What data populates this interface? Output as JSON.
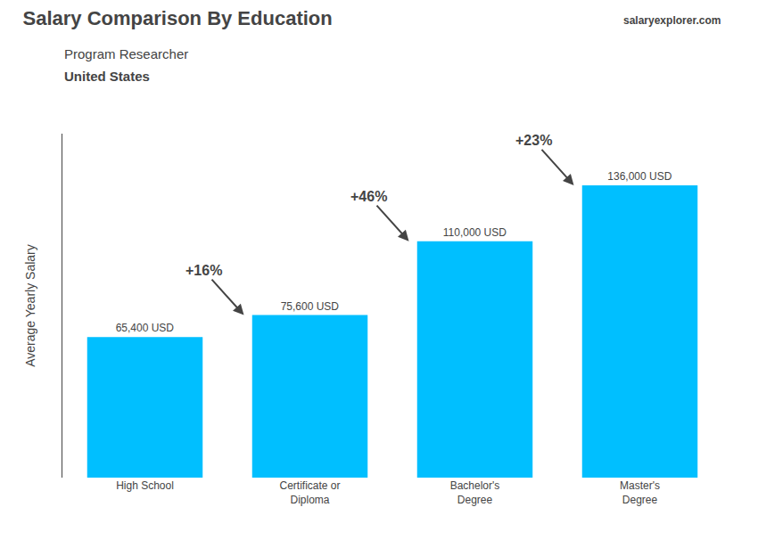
{
  "chart_data": {
    "type": "bar",
    "title": "Salary Comparison By Education",
    "subtitle": "Program Researcher",
    "country": "United States",
    "brand": "salaryexplorer.com",
    "categories": [
      "High School",
      "Certificate or\nDiploma",
      "Bachelor's\nDegree",
      "Master's\nDegree"
    ],
    "values": [
      65400,
      75600,
      110000,
      136000
    ],
    "value_labels": [
      "65,400 USD",
      "75,600 USD",
      "110,000 USD",
      "136,000 USD"
    ],
    "data_labels": true,
    "annotations": [
      "+16%",
      "+46%",
      "+23%"
    ],
    "ylabel": "Average Yearly Salary",
    "ylim": [
      0,
      160000
    ],
    "tick_labels": "x",
    "grid": false,
    "color": "#00bfff"
  }
}
